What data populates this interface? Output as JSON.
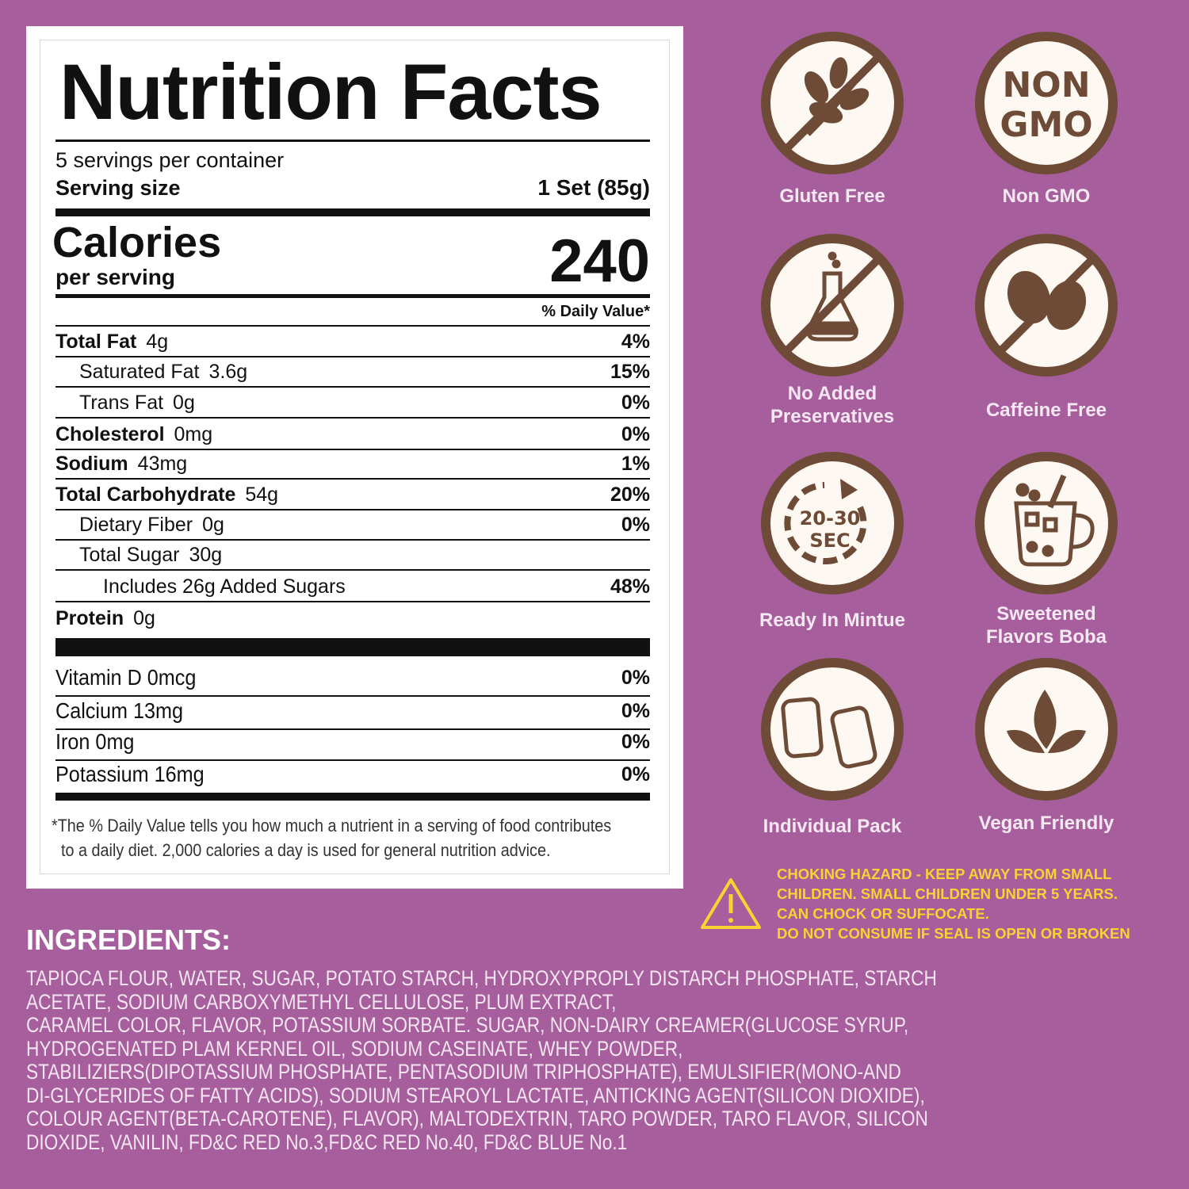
{
  "nutrition": {
    "title": "Nutrition Facts",
    "servings": "5 servings per container",
    "serving_size_label": "Serving size",
    "serving_size": "1 Set (85g)",
    "calories_label": "Calories",
    "per_serving": "per serving",
    "calories": 240,
    "daily_value_header": "% Daily Value*",
    "rows": [
      {
        "name": "Total Fat",
        "amount": "4g",
        "dv": "4%"
      },
      {
        "name": "Saturated Fat",
        "amount": "3.6g",
        "dv": "15%"
      },
      {
        "name": "Trans Fat",
        "amount": "0g",
        "dv": "0%"
      },
      {
        "name": "Cholesterol",
        "amount": "0mg",
        "dv": "0%"
      },
      {
        "name": "Sodium",
        "amount": "43mg",
        "dv": "1%"
      },
      {
        "name": "Total Carbohydrate",
        "amount": "54g",
        "dv": "20%"
      },
      {
        "name": "Dietary Fiber",
        "amount": "0g",
        "dv": "0%"
      },
      {
        "name": "Total Sugar",
        "amount": "30g"
      },
      {
        "name": "Includes 26g Added Sugars",
        "dv": "48%"
      },
      {
        "name": "Protein",
        "amount": "0g"
      }
    ],
    "vitamins": [
      {
        "name": "Vitamin D 0mcg",
        "dv": "0%"
      },
      {
        "name": "Calcium 13mg",
        "dv": "0%"
      },
      {
        "name": "Iron 0mg",
        "dv": "0%"
      },
      {
        "name": "Potassium 16mg",
        "dv": "0%"
      }
    ],
    "footnote": [
      "*The % Daily Value tells you how much a nutrient in a serving of food contributes",
      "to a daily diet. 2,000 calories a day is used for general nutrition advice."
    ]
  },
  "badges": [
    {
      "label": [
        "Gluten Free"
      ]
    },
    {
      "label": [
        "Non GMO"
      ],
      "icon_text": [
        "NON",
        "GMO"
      ]
    },
    {
      "label": [
        "No Added",
        "Preservatives"
      ]
    },
    {
      "label": [
        "Caffeine Free"
      ]
    },
    {
      "label": [
        "Ready In Mintue"
      ],
      "icon_text": [
        "20-30",
        "SEC"
      ]
    },
    {
      "label": [
        "Sweetened",
        "Flavors Boba"
      ]
    },
    {
      "label": [
        "Individual Pack"
      ]
    },
    {
      "label": [
        "Vegan Friendly"
      ]
    }
  ],
  "warning": [
    "CHOKING HAZARD - KEEP AWAY FROM SMALL",
    "CHILDREN. SMALL CHILDREN UNDER 5 YEARS.",
    "CAN CHOCK OR SUFFOCATE.",
    "DO NOT CONSUME IF SEAL IS OPEN OR BROKEN"
  ],
  "ingredients": {
    "title": "INGREDIENTS:",
    "lines": [
      "TAPIOCA FLOUR, WATER, SUGAR, POTATO STARCH, HYDROXYPROPLY DISTARCH PHOSPHATE, STARCH",
      "ACETATE, SODIUM CARBOXYMETHYL CELLULOSE, PLUM EXTRACT,",
      "CARAMEL COLOR, FLAVOR, POTASSIUM SORBATE. SUGAR, NON-DAIRY CREAMER(GLUCOSE SYRUP,",
      "HYDROGENATED PLAM KERNEL OIL, SODIUM CASEINATE, WHEY POWDER,",
      "STABILIZIERS(DIPOTASSIUM PHOSPHATE, PENTASODIUM TRIPHOSPHATE), EMULSIFIER(MONO-AND",
      "DI-GLYCERIDES OF FATTY ACIDS), SODIUM STEAROYL LACTATE, ANTICKING AGENT(SILICON DIOXIDE),",
      "COLOUR AGENT(BETA-CAROTENE), FLAVOR), MALTODEXTRIN, TARO POWDER, TARO FLAVOR, SILICON",
      "DIOXIDE, VANILIN, FD&C RED No.3,FD&C RED No.40, FD&C BLUE No.1"
    ]
  }
}
